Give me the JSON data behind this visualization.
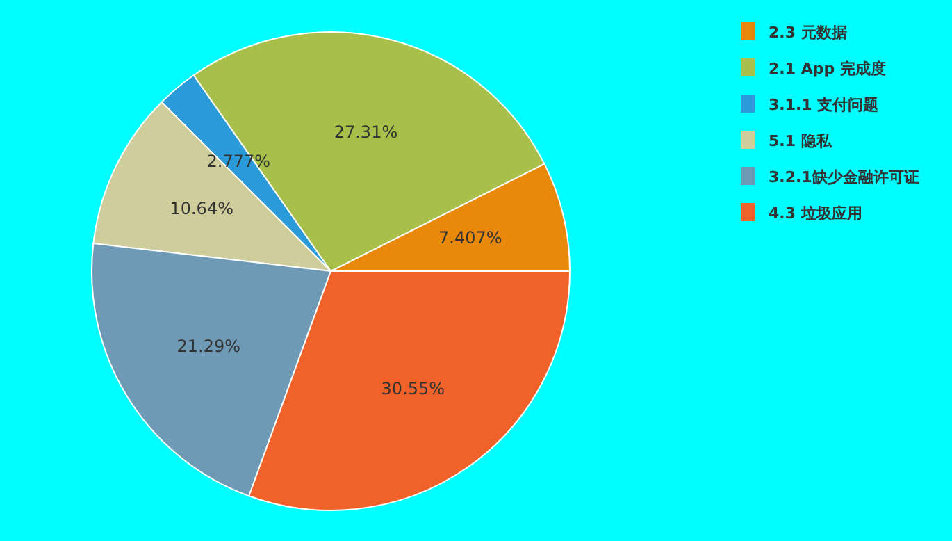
{
  "chart_data": {
    "type": "pie",
    "categories": [
      "2.3 元数据",
      "2.1 App 完成度",
      "3.1.1 支付问题",
      "5.1 隐私",
      "3.2.1缺少金融许可证",
      "4.3 垃圾应用"
    ],
    "values": [
      7.407,
      27.31,
      2.777,
      10.64,
      21.29,
      30.55
    ],
    "value_labels": [
      "7.407%",
      "27.31%",
      "2.777%",
      "10.64%",
      "21.29%",
      "30.55%"
    ],
    "colors": [
      "#e8890c",
      "#a8c04a",
      "#2a9ad8",
      "#cfcd9c",
      "#6f9ab5",
      "#f0622a"
    ],
    "legend": "top right"
  }
}
